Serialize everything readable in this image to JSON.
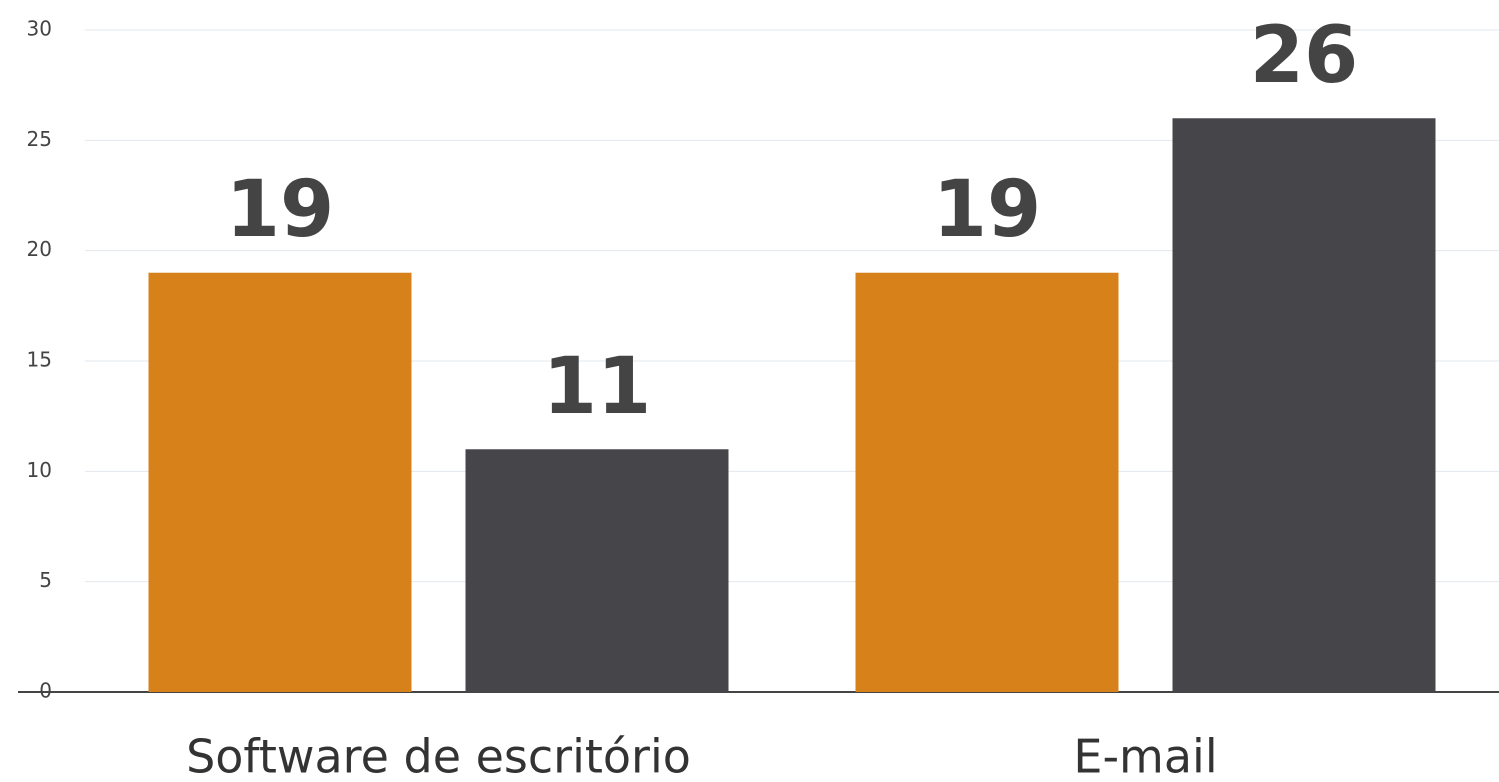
{
  "chart_data": {
    "type": "bar",
    "categories": [
      "Software de escritório",
      "E-mail"
    ],
    "series": [
      {
        "color": "#d6811a",
        "values": [
          19,
          19
        ]
      },
      {
        "color": "#464549",
        "values": [
          11,
          26
        ]
      }
    ],
    "ylim": [
      0,
      30
    ],
    "yticks": [
      0,
      5,
      10,
      15,
      20,
      25,
      30
    ],
    "grid": true
  }
}
